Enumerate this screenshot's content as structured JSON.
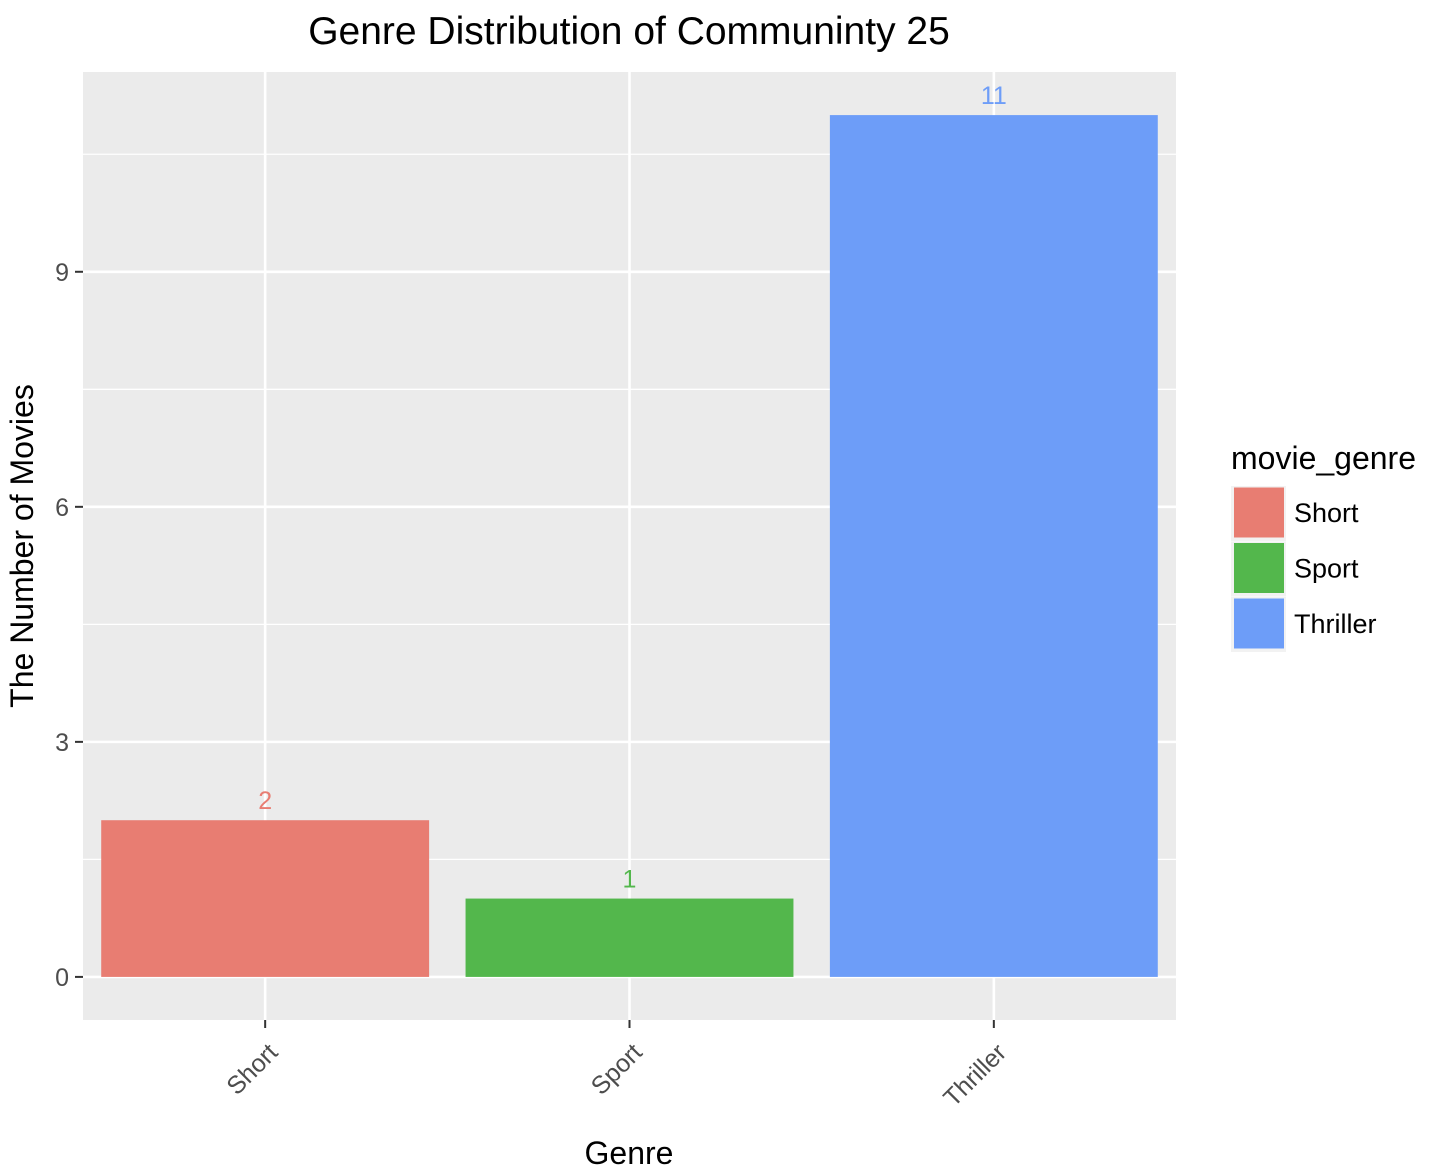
{
  "chart_data": {
    "type": "bar",
    "title": "Genre Distribution of Communinty 25",
    "xlabel": "Genre",
    "ylabel": "The Number of Movies",
    "categories": [
      "Short",
      "Sport",
      "Thriller"
    ],
    "values": [
      2,
      1,
      11
    ],
    "value_labels": [
      "2",
      "1",
      "11"
    ],
    "colors": [
      "#e87d72",
      "#53b74c",
      "#6d9df8"
    ],
    "ylim": [
      -0.55,
      11.55
    ],
    "yticks": [
      0,
      3,
      6,
      9
    ],
    "ytick_labels": [
      "0",
      "3",
      "6",
      "9"
    ],
    "grid": true,
    "panel_background": "#ebebeb",
    "grid_color": "#ffffff",
    "legend": {
      "title": "movie_genre",
      "position": "right",
      "entries": [
        "Short",
        "Sport",
        "Thriller"
      ]
    }
  }
}
